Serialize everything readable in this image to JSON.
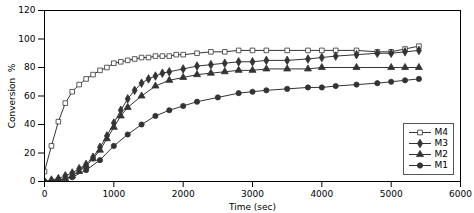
{
  "chart_data": {
    "type": "line",
    "xlabel": "Time (sec)",
    "ylabel": "Conversion  %",
    "xlim": [
      0,
      6000
    ],
    "ylim": [
      0,
      120
    ],
    "xticks": [
      0,
      1000,
      2000,
      3000,
      4000,
      5000,
      6000
    ],
    "yticks": [
      0,
      20,
      40,
      60,
      80,
      100,
      120
    ],
    "grid": false,
    "legend": "lower right",
    "series": [
      {
        "name": "M4",
        "color": "#333333",
        "marker": "square-open",
        "x": [
          0,
          100,
          200,
          300,
          400,
          500,
          600,
          700,
          800,
          900,
          1000,
          1100,
          1200,
          1300,
          1400,
          1500,
          1600,
          1700,
          1800,
          1900,
          2000,
          2200,
          2400,
          2600,
          2800,
          3000,
          3200,
          3500,
          3800,
          4000,
          4200,
          4500,
          4800,
          5000,
          5200,
          5400
        ],
        "values": [
          7,
          25,
          42,
          55,
          63,
          68,
          72,
          75,
          78,
          80,
          83,
          84,
          85,
          86,
          87,
          87,
          88,
          88,
          88,
          89,
          89,
          90,
          91,
          91,
          92,
          92,
          92,
          92,
          92,
          92,
          92,
          92,
          91,
          91,
          93,
          95
        ]
      },
      {
        "name": "M3",
        "color": "#333333",
        "marker": "diamond",
        "x": [
          0,
          100,
          200,
          300,
          400,
          500,
          600,
          700,
          800,
          900,
          1000,
          1100,
          1200,
          1300,
          1400,
          1500,
          1600,
          1700,
          1800,
          2000,
          2200,
          2400,
          2600,
          2800,
          3000,
          3200,
          3500,
          3800,
          4000,
          4200,
          4500,
          4800,
          5000,
          5200,
          5400
        ],
        "values": [
          0,
          1,
          2,
          4,
          6,
          9,
          12,
          17,
          24,
          32,
          41,
          50,
          58,
          64,
          69,
          72,
          74,
          76,
          77,
          79,
          81,
          82,
          83,
          84,
          84,
          85,
          85,
          86,
          87,
          88,
          89,
          90,
          90,
          91,
          92
        ]
      },
      {
        "name": "M2",
        "color": "#333333",
        "marker": "triangle",
        "x": [
          0,
          100,
          200,
          300,
          400,
          500,
          600,
          700,
          800,
          900,
          1000,
          1100,
          1200,
          1400,
          1600,
          1800,
          2000,
          2200,
          2400,
          2600,
          2800,
          3000,
          3200,
          3500,
          3800,
          4000,
          4500,
          5000,
          5200,
          5400
        ],
        "values": [
          0,
          0,
          1,
          2,
          4,
          7,
          11,
          16,
          22,
          30,
          38,
          46,
          52,
          60,
          67,
          71,
          73,
          75,
          76,
          77,
          78,
          78,
          79,
          79,
          79,
          80,
          80,
          80,
          80,
          80
        ]
      },
      {
        "name": "M1",
        "color": "#333333",
        "marker": "circle",
        "x": [
          0,
          200,
          400,
          600,
          800,
          1000,
          1200,
          1400,
          1600,
          1800,
          2000,
          2200,
          2500,
          2800,
          3000,
          3200,
          3500,
          3800,
          4000,
          4200,
          4500,
          4800,
          5000,
          5200,
          5400
        ],
        "values": [
          0,
          1,
          3,
          8,
          15,
          25,
          33,
          40,
          46,
          50,
          53,
          56,
          59,
          62,
          63,
          64,
          65,
          66,
          66,
          67,
          68,
          69,
          70,
          71,
          72
        ]
      }
    ]
  }
}
